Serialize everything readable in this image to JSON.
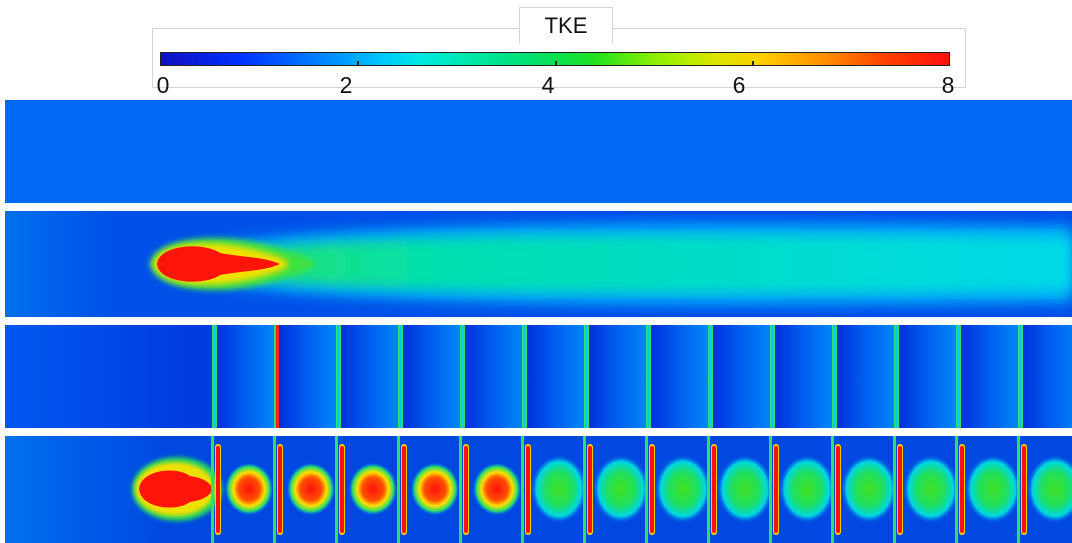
{
  "legend": {
    "title": "TKE",
    "ticks": [
      "0",
      "2",
      "4",
      "6",
      "8"
    ],
    "range": [
      0,
      8
    ]
  },
  "colors": {
    "background_low": "#0060f0",
    "low": "#0040e0",
    "mid": "#00e0e0",
    "green": "#20e020",
    "high": "#ff1010"
  },
  "panels": [
    {
      "id": "panel-1",
      "pattern": "uniform-low"
    },
    {
      "id": "panel-2",
      "pattern": "single-jet-plume"
    },
    {
      "id": "panel-3",
      "pattern": "periodic-bands"
    },
    {
      "id": "panel-4",
      "pattern": "jet-with-periodic-cells"
    }
  ]
}
